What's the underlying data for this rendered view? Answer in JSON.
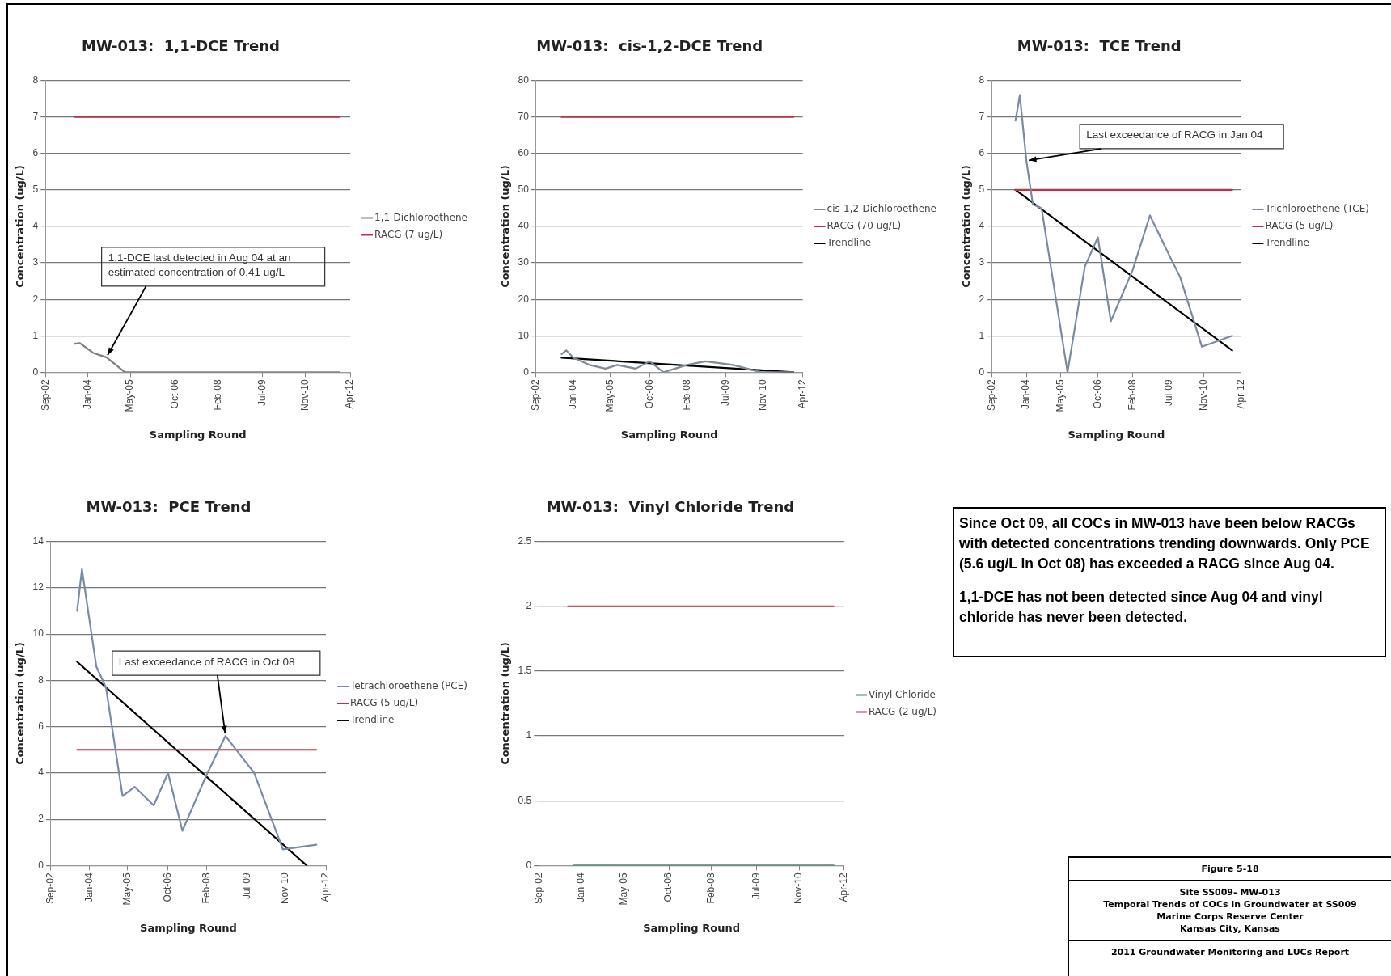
{
  "chart_data": [
    {
      "type": "line",
      "title": "MW-013:  1,1-DCE Trend",
      "xlabel": "Sampling Round",
      "ylabel": "Concentration (ug/L)",
      "xlim": [
        "2002-09",
        "2012-04"
      ],
      "xticks": [
        {
          "value": "2002-09",
          "label": "Sep-02"
        },
        {
          "value": "2004-01",
          "label": "Jan-04"
        },
        {
          "value": "2005-05",
          "label": "May-05"
        },
        {
          "value": "2006-10",
          "label": "Oct-06"
        },
        {
          "value": "2008-02",
          "label": "Feb-08"
        },
        {
          "value": "2009-07",
          "label": "Jul-09"
        },
        {
          "value": "2010-11",
          "label": "Nov-10"
        },
        {
          "value": "2012-04",
          "label": "Apr-12"
        }
      ],
      "ylim": [
        0,
        8
      ],
      "yticks": [
        0,
        1,
        2,
        3,
        4,
        5,
        6,
        7,
        8
      ],
      "grid": "y",
      "legend": "right",
      "marker": "none",
      "series": [
        {
          "name": "1,1-Dichloroethene",
          "color": "#7f7f7f",
          "x": [
            "2003-08",
            "2003-10",
            "2004-03",
            "2004-08",
            "2005-03",
            "2005-08",
            "2006-04",
            "2006-10",
            "2007-04",
            "2008-02",
            "2008-10",
            "2009-07",
            "2009-12",
            "2010-10",
            "2011-12"
          ],
          "values": [
            0.78,
            0.8,
            0.53,
            0.41,
            0,
            0,
            0,
            0,
            0,
            0,
            0,
            0,
            0,
            0,
            0
          ]
        },
        {
          "name": "RACG (7 ug/L)",
          "color": "#c0304a",
          "x": [
            "2003-08",
            "2011-12"
          ],
          "values": [
            7,
            7
          ]
        }
      ],
      "annotations": [
        {
          "text": "1,1-DCE last detected in Aug 04 at an estimated concentration of 0.41 ug/L",
          "x": "2004-08",
          "y": 0.41
        }
      ]
    },
    {
      "type": "line",
      "title": "MW-013:  cis-1,2-DCE Trend",
      "xlabel": "Sampling Round",
      "ylabel": "Concentration (ug/L)",
      "xlim": [
        "2002-09",
        "2012-04"
      ],
      "xticks": [
        {
          "value": "2002-09",
          "label": "Sep-02"
        },
        {
          "value": "2004-01",
          "label": "Jan-04"
        },
        {
          "value": "2005-05",
          "label": "May-05"
        },
        {
          "value": "2006-10",
          "label": "Oct-06"
        },
        {
          "value": "2008-02",
          "label": "Feb-08"
        },
        {
          "value": "2009-07",
          "label": "Jul-09"
        },
        {
          "value": "2010-11",
          "label": "Nov-10"
        },
        {
          "value": "2012-04",
          "label": "Apr-12"
        }
      ],
      "ylim": [
        0,
        80
      ],
      "yticks": [
        0,
        10,
        20,
        30,
        40,
        50,
        60,
        70,
        80
      ],
      "grid": "y",
      "legend": "right",
      "marker": "none",
      "series": [
        {
          "name": "cis-1,2-Dichloroethene",
          "color": "#7f8a96",
          "x": [
            "2003-08",
            "2003-10",
            "2004-01",
            "2004-08",
            "2005-03",
            "2005-08",
            "2006-04",
            "2006-10",
            "2007-04",
            "2008-02",
            "2008-10",
            "2009-10",
            "2010-10",
            "2011-12"
          ],
          "values": [
            5,
            6,
            4,
            2,
            1,
            2,
            1,
            3,
            0,
            2,
            3,
            2,
            0,
            0
          ]
        },
        {
          "name": "RACG (70 ug/L)",
          "color": "#c0304a",
          "x": [
            "2003-08",
            "2011-12"
          ],
          "values": [
            70,
            70
          ]
        },
        {
          "name": "Trendline",
          "color": "#000000",
          "x": [
            "2003-08",
            "2011-12"
          ],
          "values": [
            4,
            0
          ]
        }
      ]
    },
    {
      "type": "line",
      "title": "MW-013:  TCE Trend",
      "xlabel": "Sampling Round",
      "ylabel": "Concentration (ug/L)",
      "xlim": [
        "2002-09",
        "2012-04"
      ],
      "xticks": [
        {
          "value": "2002-09",
          "label": "Sep-02"
        },
        {
          "value": "2004-01",
          "label": "Jan-04"
        },
        {
          "value": "2005-05",
          "label": "May-05"
        },
        {
          "value": "2006-10",
          "label": "Oct-06"
        },
        {
          "value": "2008-02",
          "label": "Feb-08"
        },
        {
          "value": "2009-07",
          "label": "Jul-09"
        },
        {
          "value": "2010-11",
          "label": "Nov-10"
        },
        {
          "value": "2012-04",
          "label": "Apr-12"
        }
      ],
      "ylim": [
        0,
        8
      ],
      "yticks": [
        0,
        1,
        2,
        3,
        4,
        5,
        6,
        7,
        8
      ],
      "grid": "y",
      "legend": "right",
      "marker": "none",
      "series": [
        {
          "name": "Trichloroethene (TCE)",
          "color": "#7a8aa0",
          "x": [
            "2003-08",
            "2003-10",
            "2004-01",
            "2004-04",
            "2004-08",
            "2005-08",
            "2006-04",
            "2006-10",
            "2007-04",
            "2008-02",
            "2008-10",
            "2009-07",
            "2009-12",
            "2010-10",
            "2011-12"
          ],
          "values": [
            6.9,
            7.6,
            5.8,
            4.6,
            4.5,
            0,
            2.9,
            3.7,
            1.4,
            2.8,
            4.3,
            3.2,
            2.6,
            0.7,
            1.0
          ]
        },
        {
          "name": "RACG (5 ug/L)",
          "color": "#c0304a",
          "x": [
            "2003-08",
            "2011-12"
          ],
          "values": [
            5,
            5
          ]
        },
        {
          "name": "Trendline",
          "color": "#000000",
          "x": [
            "2003-08",
            "2011-12"
          ],
          "values": [
            5.0,
            0.6
          ]
        }
      ],
      "annotations": [
        {
          "text": "Last exceedance of RACG in Jan 04",
          "x": "2004-01",
          "y": 5.8
        }
      ]
    },
    {
      "type": "line",
      "title": "MW-013:  PCE Trend",
      "xlabel": "Sampling Round",
      "ylabel": "Concentration (ug/L)",
      "xlim": [
        "2002-09",
        "2012-04"
      ],
      "xticks": [
        {
          "value": "2002-09",
          "label": "Sep-02"
        },
        {
          "value": "2004-01",
          "label": "Jan-04"
        },
        {
          "value": "2005-05",
          "label": "May-05"
        },
        {
          "value": "2006-10",
          "label": "Oct-06"
        },
        {
          "value": "2008-02",
          "label": "Feb-08"
        },
        {
          "value": "2009-07",
          "label": "Jul-09"
        },
        {
          "value": "2010-11",
          "label": "Nov-10"
        },
        {
          "value": "2012-04",
          "label": "Apr-12"
        }
      ],
      "ylim": [
        0,
        14
      ],
      "yticks": [
        0,
        2,
        4,
        6,
        8,
        10,
        12,
        14
      ],
      "grid": "y",
      "legend": "right",
      "marker": "none",
      "series": [
        {
          "name": "Tetrachloroethene (PCE)",
          "color": "#7a8ca4",
          "x": [
            "2003-08",
            "2003-10",
            "2004-04",
            "2004-08",
            "2005-03",
            "2005-08",
            "2006-04",
            "2006-10",
            "2007-04",
            "2008-02",
            "2008-10",
            "2009-10",
            "2010-10",
            "2011-12"
          ],
          "values": [
            11.0,
            12.8,
            8.6,
            7.7,
            3.0,
            3.4,
            2.6,
            4.0,
            1.5,
            3.9,
            5.6,
            4.0,
            0.7,
            0.9
          ]
        },
        {
          "name": "RACG (5 ug/L)",
          "color": "#c0304a",
          "x": [
            "2003-08",
            "2011-12"
          ],
          "values": [
            5,
            5
          ]
        },
        {
          "name": "Trendline",
          "color": "#000000",
          "x": [
            "2003-08",
            "2011-08"
          ],
          "values": [
            8.8,
            0
          ]
        }
      ],
      "annotations": [
        {
          "text": "Last exceedance of RACG in Oct 08",
          "x": "2008-10",
          "y": 5.6
        }
      ]
    },
    {
      "type": "line",
      "title": "MW-013:  Vinyl Chloride Trend",
      "xlabel": "Sampling Round",
      "ylabel": "Concentration (ug/L)",
      "xlim": [
        "2002-09",
        "2012-04"
      ],
      "xticks": [
        {
          "value": "2002-09",
          "label": "Sep-02"
        },
        {
          "value": "2004-01",
          "label": "Jan-04"
        },
        {
          "value": "2005-05",
          "label": "May-05"
        },
        {
          "value": "2006-10",
          "label": "Oct-06"
        },
        {
          "value": "2008-02",
          "label": "Feb-08"
        },
        {
          "value": "2009-07",
          "label": "Jul-09"
        },
        {
          "value": "2010-11",
          "label": "Nov-10"
        },
        {
          "value": "2012-04",
          "label": "Apr-12"
        }
      ],
      "ylim": [
        0,
        2.5
      ],
      "yticks": [
        0,
        0.5,
        1,
        1.5,
        2,
        2.5
      ],
      "grid": "y",
      "legend": "right",
      "marker": "none",
      "series": [
        {
          "name": "Vinyl Chloride",
          "color": "#3f8a6e",
          "x": [
            "2003-10",
            "2004-08",
            "2005-08",
            "2006-10",
            "2008-02",
            "2008-10",
            "2009-07",
            "2010-10",
            "2011-12"
          ],
          "values": [
            0,
            0,
            0,
            0,
            0,
            0,
            0,
            0,
            0
          ]
        },
        {
          "name": "RACG (2 ug/L)",
          "color": "#c0304a",
          "x": [
            "2003-08",
            "2011-12"
          ],
          "values": [
            2,
            2
          ]
        }
      ]
    },
    {
      "type": "other",
      "annotations": [
        "Since Oct 09, all COCs in MW-013 have been below RACGs with detected concentrations trending downwards.  Only PCE (5.6 ug/L in Oct 08) has exceeded a RACG since Aug 04.",
        "1,1-DCE has not been detected since Aug 04 and vinyl chloride has never been detected."
      ]
    },
    {
      "type": "other",
      "annotations": [
        "Figure 5-18",
        "Site SS009- MW-013",
        "Temporal Trends of COCs in Groundwater at SS009",
        "Marine Corps Reserve Center",
        "Kansas City, Kansas",
        "2011 Groundwater Monitoring and LUCs Report"
      ]
    }
  ]
}
